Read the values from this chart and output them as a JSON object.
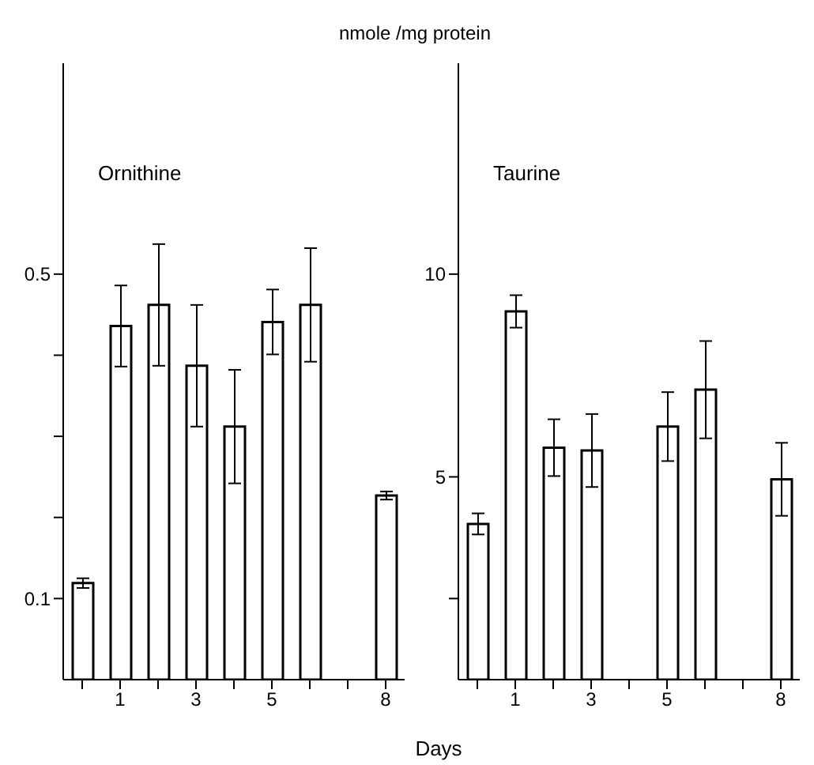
{
  "chart_data": [
    {
      "type": "bar",
      "title": "Ornithine",
      "ylabel": "nmole /mg protein",
      "xlabel": "Days",
      "color": "#ffffff",
      "categories": [
        null,
        "1",
        null,
        "3",
        null,
        "5",
        null,
        null,
        "8"
      ],
      "values": [
        0.119,
        0.436,
        0.462,
        0.387,
        0.312,
        0.441,
        0.462,
        null,
        0.227
      ],
      "errors": [
        0.006,
        0.05,
        0.075,
        0.075,
        0.07,
        0.04,
        0.07,
        null,
        0.005
      ],
      "ylim": [
        0,
        0.76
      ],
      "yticks": [
        0.1,
        {
          "value": 0.2,
          "label": null
        },
        {
          "value": 0.3,
          "label": null
        },
        {
          "value": 0.4,
          "label": null
        },
        0.5
      ]
    },
    {
      "type": "bar",
      "title": "Taurine",
      "color": "#ffffff",
      "categories": [
        null,
        "1",
        null,
        "3",
        null,
        "5",
        null,
        null,
        "8"
      ],
      "values": [
        3.84,
        9.08,
        5.72,
        5.65,
        null,
        6.24,
        7.15,
        null,
        4.94
      ],
      "errors": [
        0.26,
        0.4,
        0.7,
        0.9,
        null,
        0.85,
        1.2,
        null,
        0.9
      ],
      "ylim": [
        0,
        15.2
      ],
      "yticks": [
        {
          "value": 2,
          "label": null
        },
        5,
        10
      ]
    }
  ]
}
